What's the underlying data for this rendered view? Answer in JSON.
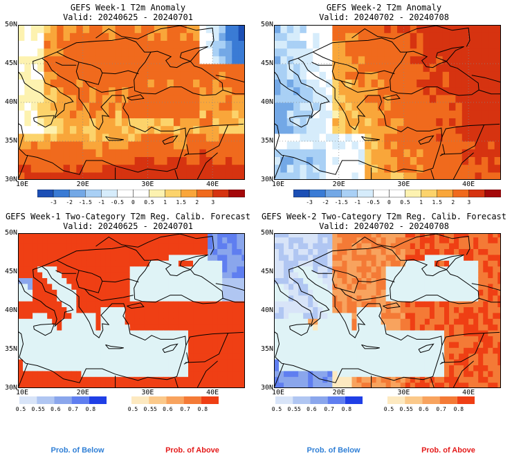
{
  "panels": [
    {
      "title": "GEFS Week-1 T2m Anomaly",
      "valid": "Valid: 20240625 - 20240701",
      "type": "anomaly",
      "variant": 1
    },
    {
      "title": "GEFS Week-2 T2m Anomaly",
      "valid": "Valid: 20240702 - 20240708",
      "type": "anomaly",
      "variant": 2
    },
    {
      "title": "GEFS Week-1 Two-Category T2m Reg. Calib. Forecast",
      "valid": "Valid: 20240625 - 20240701",
      "type": "prob",
      "variant": 1
    },
    {
      "title": "GEFS Week-2 Two-Category T2m Reg. Calib. Forecast",
      "valid": "Valid: 20240702 - 20240708",
      "type": "prob",
      "variant": 2
    }
  ],
  "axes": {
    "lat_labels": [
      "50N",
      "45N",
      "40N",
      "35N",
      "30N"
    ],
    "lon_labels": [
      "10E",
      "20E",
      "30E",
      "40E"
    ],
    "lon_range": [
      10,
      45
    ],
    "lat_range": [
      30,
      50
    ]
  },
  "anomaly_scale": {
    "labels": [
      "-3",
      "-2",
      "-1.5",
      "-1",
      "-0.5",
      "0",
      "0.5",
      "1",
      "1.5",
      "2",
      "3"
    ],
    "colors": [
      "#1c4fb5",
      "#3a7bd5",
      "#73a8e6",
      "#a9d0f5",
      "#d6ecfb",
      "#ffffff",
      "#ffffff",
      "#fdf2b0",
      "#fcd36b",
      "#f9a63a",
      "#f06a1d",
      "#d63310",
      "#a4080a"
    ]
  },
  "below_scale": {
    "labels": [
      "0.5",
      "0.55",
      "0.6",
      "0.7",
      "0.8"
    ],
    "colors": [
      "#d8e4f8",
      "#b0c6f2",
      "#8aa6ec",
      "#5f7ef0",
      "#1f3fe6"
    ]
  },
  "above_scale": {
    "labels": [
      "0.5",
      "0.55",
      "0.6",
      "0.7",
      "0.8"
    ],
    "colors": [
      "#fde9c0",
      "#fbc98a",
      "#f8a35e",
      "#f47a36",
      "#ef3f14"
    ]
  },
  "footer": {
    "below_label": "Prob. of Below",
    "above_label": "Prob. of Above",
    "below_color": "#2f7fd6",
    "above_color": "#e41a1a"
  },
  "sea_color": "#dff3f6"
}
